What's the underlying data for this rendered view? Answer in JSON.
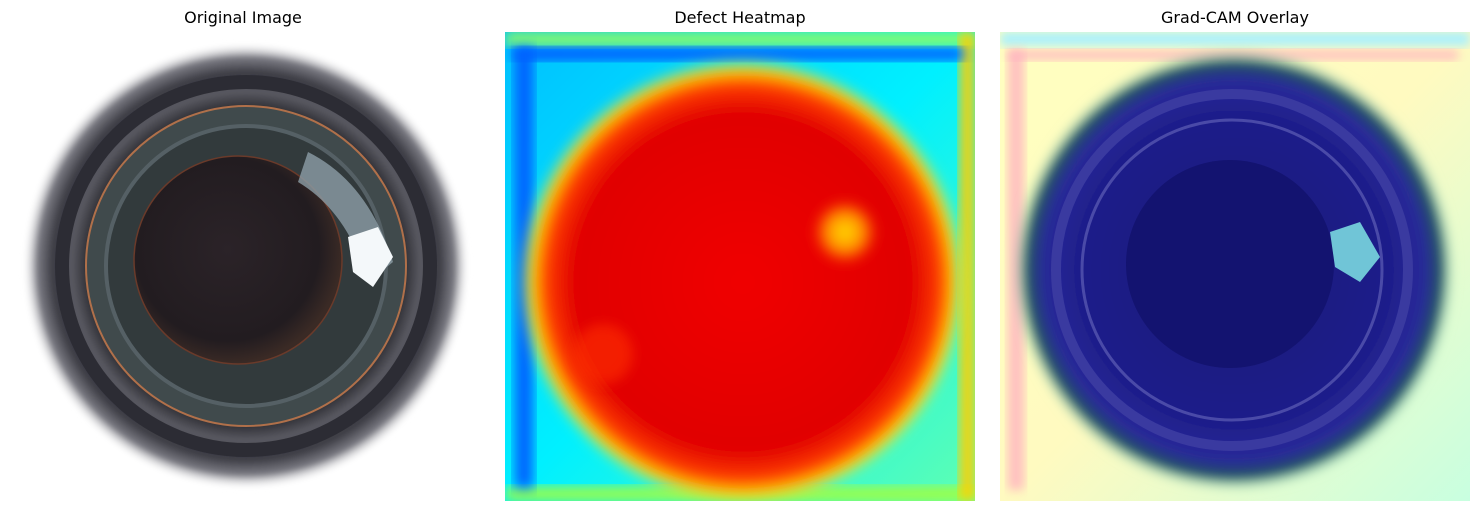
{
  "panels": [
    {
      "title": "Original Image"
    },
    {
      "title": "Defect Heatmap"
    },
    {
      "title": "Grad-CAM Overlay"
    }
  ],
  "colors": {
    "background": "#ffffff",
    "title_text": "#000000",
    "heatmap_peak": "#d40000",
    "heatmap_low": "#0030ff",
    "overlay_tint": "#1a1a7a"
  }
}
